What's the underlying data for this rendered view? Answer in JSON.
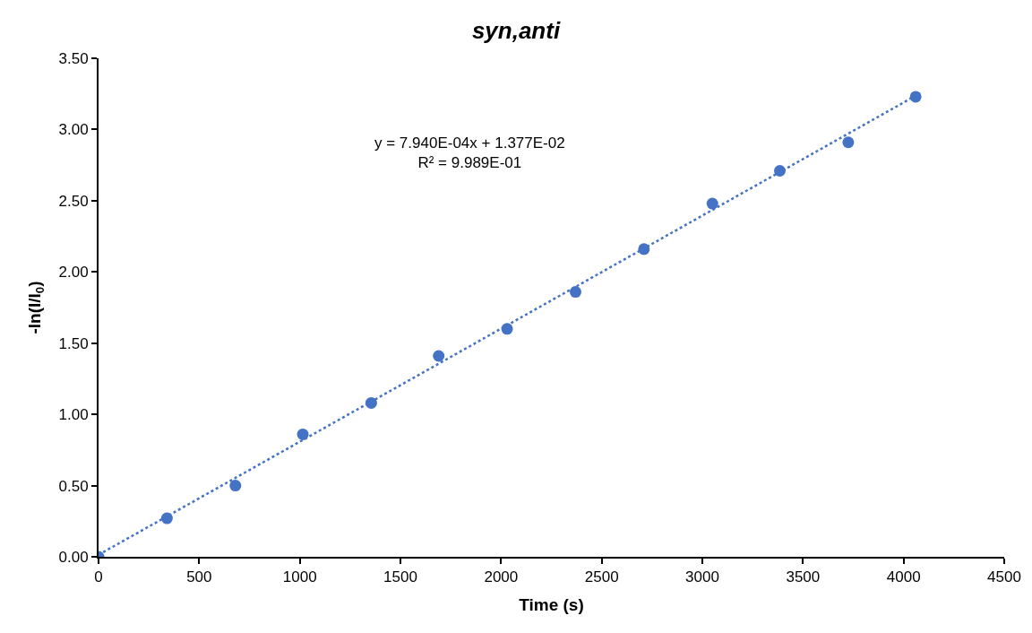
{
  "chart_data": {
    "type": "scatter",
    "title": "syn,anti",
    "xlabel": "Time (s)",
    "ylabel": "-ln(I/I$_{0}$)",
    "x": [
      0,
      340,
      680,
      1015,
      1355,
      1690,
      2030,
      2370,
      2710,
      3050,
      3385,
      3725,
      4060
    ],
    "series": [
      {
        "color": "#4472c4",
        "marker": "circle",
        "values": [
          0,
          0.27,
          0.5,
          0.86,
          1.08,
          1.41,
          1.6,
          1.86,
          2.16,
          2.48,
          2.71,
          2.91,
          3.23
        ]
      },
      {
        "type": "line",
        "color": "#4472c4",
        "line_style": "dotted",
        "x": [
          0,
          4060
        ],
        "values": [
          0.014,
          3.237
        ]
      }
    ],
    "annotations": [
      "y = 7.940E-04x + 1.377E-02\nR² = 9.989E-01"
    ],
    "xlim": [
      0,
      4500
    ],
    "xticks": [
      0,
      500,
      1000,
      1500,
      2000,
      2500,
      3000,
      3500,
      4000,
      4500
    ],
    "ylim": [
      0,
      3.5
    ],
    "yticks": [
      {
        "value": 0,
        "label": "0.00"
      },
      {
        "value": 0.5,
        "label": "0.50"
      },
      {
        "value": 1,
        "label": "1.00"
      },
      {
        "value": 1.5,
        "label": "1.50"
      },
      {
        "value": 2,
        "label": "2.00"
      },
      {
        "value": 2.5,
        "label": "2.50"
      },
      {
        "value": 3,
        "label": "3.00"
      },
      {
        "value": 3.5,
        "label": "3.50"
      }
    ]
  }
}
